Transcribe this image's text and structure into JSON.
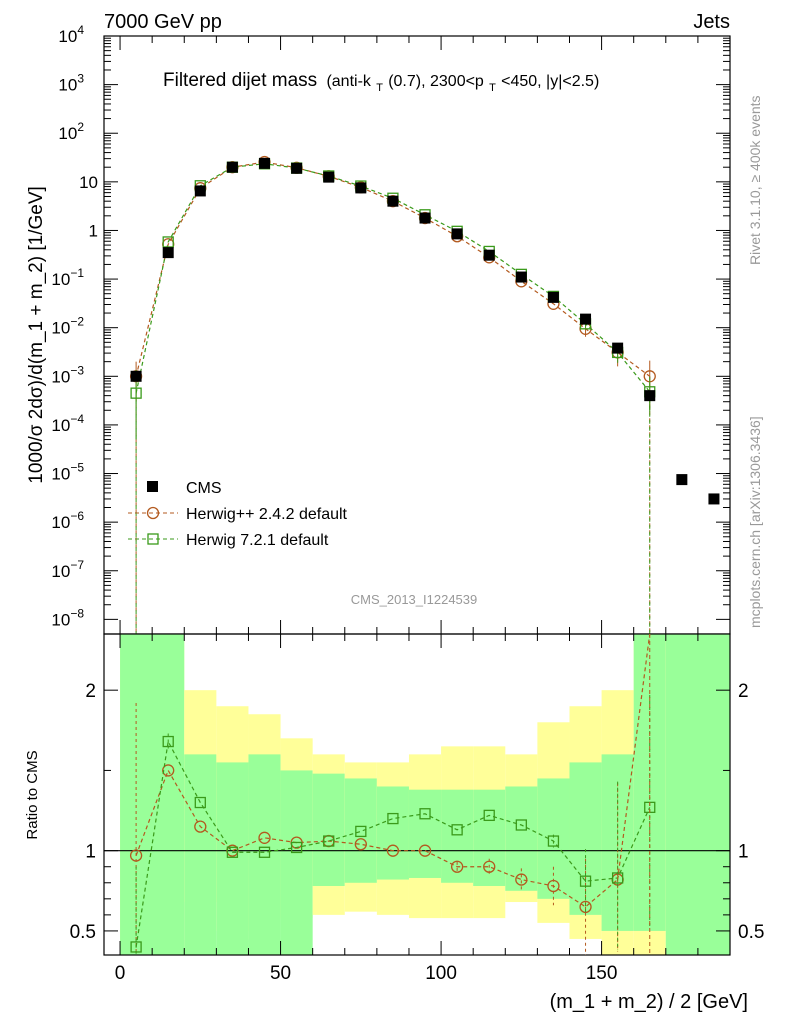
{
  "header": {
    "left": "7000 GeV pp",
    "right": "Jets"
  },
  "side_labels": {
    "rivet": "Rivet 3.1.10, ≥ 400k events",
    "mcplots": "mcplots.cern.ch [arXiv:1306.3436]"
  },
  "chart_data": [
    {
      "type": "scatter",
      "title": "Filtered dijet mass",
      "subtitle_parts": {
        "a": "(anti-k",
        "a_sub": "T",
        "b": "(0.7), 2300<p",
        "b_sub": "T",
        "c": "<450, |y|<2.5)"
      },
      "ylabel": "1000/σ 2dσ)/d(m_1 + m_2) [1/GeV]",
      "yscale": "log",
      "ylim": [
        5e-09,
        10000
      ],
      "xlim": [
        -5,
        190
      ],
      "y_tick_labels": [
        {
          "m": "10",
          "e": "4"
        },
        {
          "m": "10",
          "e": "3"
        },
        {
          "m": "10",
          "e": "2"
        },
        {
          "m": "10",
          "e": ""
        },
        {
          "m": "1",
          "e": ""
        },
        {
          "m": "10",
          "e": "−1"
        },
        {
          "m": "10",
          "e": "−2"
        },
        {
          "m": "10",
          "e": "−3"
        },
        {
          "m": "10",
          "e": "−4"
        },
        {
          "m": "10",
          "e": "−5"
        },
        {
          "m": "10",
          "e": "−6"
        },
        {
          "m": "10",
          "e": "−7"
        },
        {
          "m": "10",
          "e": "−8"
        }
      ],
      "watermark": "CMS_2013_I1224539",
      "legend": [
        "CMS",
        "Herwig++ 2.4.2 default",
        "Herwig 7.2.1 default"
      ],
      "series": [
        {
          "name": "CMS",
          "color": "#000000",
          "x": [
            5,
            15,
            25,
            35,
            45,
            55,
            65,
            75,
            85,
            95,
            105,
            115,
            125,
            135,
            145,
            155,
            165,
            175,
            185
          ],
          "y": [
            0.001,
            0.35,
            6.5,
            20,
            24,
            19,
            12.5,
            7.5,
            4.0,
            1.8,
            0.85,
            0.31,
            0.11,
            0.042,
            0.015,
            0.0038,
            0.0004,
            7.5e-06,
            3e-06
          ]
        },
        {
          "name": "Herwig++ 2.4.2 default",
          "color": "#b35a1f",
          "x": [
            5,
            15,
            25,
            35,
            45,
            55,
            65,
            75,
            85,
            95,
            105,
            115,
            125,
            135,
            145,
            155,
            165
          ],
          "y": [
            0.001,
            0.52,
            7.4,
            20,
            25.5,
            19.5,
            13,
            7.7,
            4.0,
            1.8,
            0.76,
            0.28,
            0.09,
            0.031,
            0.0095,
            0.0031,
            0.001
          ],
          "yerr_lo": [
            0.0007,
            0,
            0,
            0,
            0,
            0,
            0,
            0,
            0,
            0,
            0,
            0,
            0,
            0,
            0.003,
            0.0015,
            0.0008
          ],
          "yerr_hi": [
            0.001,
            0,
            0,
            0,
            0,
            0,
            0,
            0,
            0,
            0,
            0,
            0,
            0,
            0,
            0.003,
            0.0015,
            0.0011
          ]
        },
        {
          "name": "Herwig 7.2.1 default",
          "color": "#3a9a1a",
          "x": [
            5,
            15,
            25,
            35,
            45,
            55,
            65,
            75,
            85,
            95,
            105,
            115,
            125,
            135,
            145,
            155,
            165
          ],
          "y": [
            0.00045,
            0.58,
            8.3,
            20,
            23.5,
            19.2,
            13.2,
            8.2,
            4.6,
            2.1,
            0.96,
            0.37,
            0.125,
            0.044,
            0.012,
            0.0031,
            0.00048
          ],
          "yerr_lo": [
            0.0004,
            0,
            0,
            0,
            0,
            0,
            0,
            0,
            0,
            0,
            0,
            0,
            0,
            0,
            0.002,
            0.0012,
            0.0003
          ],
          "yerr_hi": [
            0.0009,
            0,
            0,
            0,
            0,
            0,
            0,
            0,
            0,
            0,
            0,
            0,
            0,
            0,
            0.002,
            0.0012,
            0.0005
          ]
        }
      ]
    },
    {
      "type": "scatter",
      "xlabel": "(m_1 + m_2) / 2 [GeV]",
      "ylabel": "Ratio to CMS",
      "ylim": [
        0.35,
        2.35
      ],
      "xlim": [
        -5,
        190
      ],
      "x_ticks": [
        0,
        50,
        100,
        150
      ],
      "y_ticks": [
        0.5,
        1,
        2
      ],
      "reference_line": 1,
      "bands": {
        "bins": [
          [
            0,
            20
          ],
          [
            20,
            30
          ],
          [
            30,
            40
          ],
          [
            40,
            50
          ],
          [
            50,
            60
          ],
          [
            60,
            70
          ],
          [
            70,
            80
          ],
          [
            80,
            90
          ],
          [
            90,
            100
          ],
          [
            100,
            110
          ],
          [
            110,
            120
          ],
          [
            120,
            130
          ],
          [
            130,
            140
          ],
          [
            140,
            150
          ],
          [
            150,
            160
          ],
          [
            160,
            170
          ],
          [
            170,
            190
          ]
        ],
        "green_color": "#99ff99",
        "yellow_color": "#ffff99",
        "inner_lo": [
          0.35,
          0.35,
          0.35,
          0.35,
          0.35,
          0.78,
          0.8,
          0.82,
          0.83,
          0.8,
          0.78,
          0.75,
          0.7,
          0.6,
          0.5,
          0.5,
          0.35
        ],
        "inner_hi": [
          2.35,
          1.6,
          1.55,
          1.6,
          1.5,
          1.48,
          1.45,
          1.4,
          1.38,
          1.38,
          1.38,
          1.4,
          1.45,
          1.55,
          1.6,
          2.35,
          2.35
        ],
        "outer_lo": [
          0.35,
          0.68,
          0.5,
          0.45,
          0.58,
          0.6,
          0.62,
          0.6,
          0.58,
          0.58,
          0.58,
          0.68,
          0.55,
          0.45,
          0.35,
          0.35,
          0.35
        ],
        "outer_hi": [
          2.35,
          2.0,
          1.9,
          1.85,
          1.7,
          1.6,
          1.55,
          1.55,
          1.6,
          1.65,
          1.65,
          1.6,
          1.8,
          1.9,
          2.0,
          2.35,
          2.35
        ]
      },
      "series": [
        {
          "name": "Herwig++ 2.4.2 default",
          "color": "#b35a1f",
          "x": [
            5,
            15,
            25,
            35,
            45,
            55,
            65,
            75,
            85,
            95,
            105,
            115,
            125,
            135,
            145,
            155
          ],
          "y": [
            0.97,
            1.5,
            1.15,
            1.0,
            1.08,
            1.05,
            1.06,
            1.04,
            1.0,
            1.0,
            0.9,
            0.9,
            0.82,
            0.78,
            0.65,
            0.82
          ],
          "yerr_lo": [
            0.6,
            0,
            0,
            0,
            0,
            0,
            0,
            0,
            0,
            0,
            0.03,
            0.05,
            0.07,
            0.12,
            0.3,
            0.45
          ],
          "yerr_hi": [
            0.95,
            0,
            0,
            0,
            0,
            0,
            0,
            0,
            0,
            0,
            0.03,
            0.05,
            0.07,
            0.12,
            0.3,
            0.6
          ]
        },
        {
          "name": "Herwig 7.2.1 default",
          "color": "#3a9a1a",
          "x": [
            5,
            15,
            25,
            35,
            45,
            55,
            65,
            75,
            85,
            95,
            105,
            115,
            125,
            135,
            145,
            155,
            165
          ],
          "y": [
            0.4,
            1.68,
            1.3,
            0.99,
            0.99,
            1.02,
            1.06,
            1.12,
            1.2,
            1.23,
            1.13,
            1.22,
            1.16,
            1.06,
            0.81,
            0.83,
            1.27
          ],
          "yerr_lo": [
            0.1,
            0.05,
            0,
            0,
            0,
            0,
            0,
            0,
            0,
            0,
            0,
            0,
            0,
            0.04,
            0.2,
            0.45,
            0.75
          ],
          "yerr_hi": [
            0.5,
            0.05,
            0,
            0,
            0,
            0,
            0,
            0,
            0,
            0,
            0,
            0,
            0,
            0.04,
            0.2,
            0.6,
            0.7
          ]
        }
      ]
    }
  ]
}
